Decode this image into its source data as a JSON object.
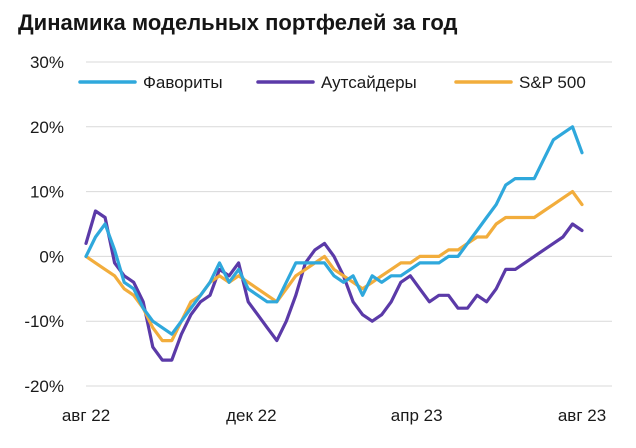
{
  "title": "Динамика модельных портфелей за год",
  "chart_data": {
    "type": "line",
    "title": "Динамика модельных портфелей за год",
    "xlabel": "",
    "ylabel": "",
    "x_ticks": [
      "авг 22",
      "дек 22",
      "апр 23",
      "авг 23"
    ],
    "y_ticks": [
      "-20%",
      "-10%",
      "0%",
      "10%",
      "20%",
      "30%"
    ],
    "ylim": [
      -20,
      30
    ],
    "grid": true,
    "legend_position": "top",
    "x": [
      0,
      1,
      2,
      3,
      4,
      5,
      6,
      7,
      8,
      9,
      10,
      11,
      12,
      13,
      14,
      15,
      16,
      17,
      18,
      19,
      20,
      21,
      22,
      23,
      24,
      25,
      26,
      27,
      28,
      29,
      30,
      31,
      32,
      33,
      34,
      35,
      36,
      37,
      38,
      39,
      40,
      41,
      42,
      43,
      44,
      45,
      46,
      47,
      48,
      49,
      50,
      51,
      52
    ],
    "series": [
      {
        "name": "Фавориты",
        "color": "#2fa8dc",
        "values": [
          0,
          3,
          5,
          1,
          -4,
          -5,
          -8,
          -10,
          -11,
          -12,
          -10,
          -8,
          -6,
          -4,
          -1,
          -4,
          -2,
          -5,
          -6,
          -7,
          -7,
          -4,
          -1,
          -1,
          -1,
          -1,
          -3,
          -4,
          -3,
          -6,
          -3,
          -4,
          -3,
          -3,
          -2,
          -1,
          -1,
          -1,
          0,
          0,
          2,
          4,
          6,
          8,
          11,
          12,
          12,
          12,
          15,
          18,
          19,
          20,
          16
        ]
      },
      {
        "name": "Аутсайдеры",
        "color": "#5b3aa8",
        "values": [
          2,
          7,
          6,
          -1,
          -3,
          -4,
          -7,
          -14,
          -16,
          -16,
          -12,
          -9,
          -7,
          -6,
          -2,
          -3,
          -1,
          -7,
          -9,
          -11,
          -13,
          -10,
          -6,
          -1,
          1,
          2,
          0,
          -3,
          -7,
          -9,
          -10,
          -9,
          -7,
          -4,
          -3,
          -5,
          -7,
          -6,
          -6,
          -8,
          -8,
          -6,
          -7,
          -5,
          -2,
          -2,
          -1,
          0,
          1,
          2,
          3,
          5,
          4
        ]
      },
      {
        "name": "S&P 500",
        "color": "#f2ad3c",
        "values": [
          0,
          -1,
          -2,
          -3,
          -5,
          -6,
          -8,
          -11,
          -13,
          -13,
          -10,
          -7,
          -6,
          -4,
          -3,
          -4,
          -3,
          -4,
          -5,
          -6,
          -7,
          -5,
          -3,
          -2,
          -1,
          0,
          -2,
          -3,
          -4,
          -5,
          -4,
          -3,
          -2,
          -1,
          -1,
          0,
          0,
          0,
          1,
          1,
          2,
          3,
          3,
          5,
          6,
          6,
          6,
          6,
          7,
          8,
          9,
          10,
          8
        ]
      }
    ]
  }
}
